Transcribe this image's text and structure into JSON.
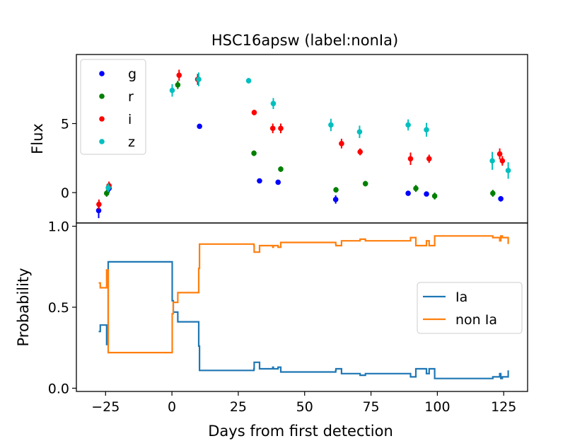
{
  "figure": {
    "title": "HSC16apsw (label:nonIa)",
    "xlabel": "Days from first detection"
  },
  "chart_data": [
    {
      "type": "scatter",
      "panel": "top",
      "title": "HSC16apsw (label:nonIa)",
      "xlabel": "",
      "ylabel": "Flux",
      "xlim": [
        -36,
        134
      ],
      "ylim": [
        -2.2,
        10.0
      ],
      "yticks": [
        0,
        5
      ],
      "legend": "top-left",
      "series": [
        {
          "name": "g",
          "color": "#0000ff",
          "points": [
            {
              "x": -27.6,
              "y": -1.3,
              "err": 0.55
            },
            {
              "x": -23.7,
              "y": 0.3,
              "err": 0.3
            },
            {
              "x": 10.4,
              "y": 4.8,
              "err": 0.15
            },
            {
              "x": 33.0,
              "y": 0.85,
              "err": 0.15
            },
            {
              "x": 40.0,
              "y": 0.75,
              "err": 0.15
            },
            {
              "x": 61.7,
              "y": -0.5,
              "err": 0.3
            },
            {
              "x": 89.0,
              "y": -0.05,
              "err": 0.15
            },
            {
              "x": 95.9,
              "y": -0.1,
              "err": 0.15
            },
            {
              "x": 123.9,
              "y": -0.45,
              "err": 0.2
            }
          ]
        },
        {
          "name": "r",
          "color": "#008000",
          "points": [
            {
              "x": -24.6,
              "y": -0.05,
              "err": 0.25
            },
            {
              "x": 2.2,
              "y": 7.8,
              "err": 0.3
            },
            {
              "x": 30.9,
              "y": 2.85,
              "err": 0.2
            },
            {
              "x": 41.0,
              "y": 1.7,
              "err": 0.2
            },
            {
              "x": 61.8,
              "y": 0.2,
              "err": 0.2
            },
            {
              "x": 72.9,
              "y": 0.65,
              "err": 0.2
            },
            {
              "x": 91.9,
              "y": 0.3,
              "err": 0.25
            },
            {
              "x": 99.0,
              "y": -0.25,
              "err": 0.25
            },
            {
              "x": 120.9,
              "y": -0.05,
              "err": 0.25
            }
          ]
        },
        {
          "name": "i",
          "color": "#ff0000",
          "points": [
            {
              "x": -27.5,
              "y": -0.85,
              "err": 0.35
            },
            {
              "x": -23.7,
              "y": 0.5,
              "err": 0.3
            },
            {
              "x": 2.7,
              "y": 8.5,
              "err": 0.4
            },
            {
              "x": 9.7,
              "y": 8.2,
              "err": 0.4
            },
            {
              "x": 31.0,
              "y": 5.8,
              "err": 0.2
            },
            {
              "x": 38.0,
              "y": 4.65,
              "err": 0.35
            },
            {
              "x": 41.0,
              "y": 4.65,
              "err": 0.35
            },
            {
              "x": 63.9,
              "y": 3.55,
              "err": 0.35
            },
            {
              "x": 70.9,
              "y": 2.95,
              "err": 0.25
            },
            {
              "x": 89.9,
              "y": 2.45,
              "err": 0.45
            },
            {
              "x": 96.9,
              "y": 2.45,
              "err": 0.3
            },
            {
              "x": 123.5,
              "y": 2.8,
              "err": 0.4
            },
            {
              "x": 124.5,
              "y": 2.3,
              "err": 0.35
            }
          ]
        },
        {
          "name": "z",
          "color": "#00bfbf",
          "points": [
            {
              "x": -24.0,
              "y": 0.35,
              "err": 0.3
            },
            {
              "x": 0.1,
              "y": 7.4,
              "err": 0.45
            },
            {
              "x": 10.1,
              "y": 8.2,
              "err": 0.5
            },
            {
              "x": 28.9,
              "y": 8.1,
              "err": 0.2
            },
            {
              "x": 38.2,
              "y": 6.45,
              "err": 0.4
            },
            {
              "x": 59.9,
              "y": 4.9,
              "err": 0.45
            },
            {
              "x": 70.7,
              "y": 4.4,
              "err": 0.45
            },
            {
              "x": 89.0,
              "y": 4.9,
              "err": 0.4
            },
            {
              "x": 95.9,
              "y": 4.55,
              "err": 0.5
            },
            {
              "x": 120.7,
              "y": 2.3,
              "err": 0.65
            },
            {
              "x": 126.7,
              "y": 1.6,
              "err": 0.6
            }
          ]
        }
      ]
    },
    {
      "type": "line",
      "panel": "bottom",
      "step": true,
      "title": "",
      "xlabel": "Days from first detection",
      "ylabel": "Probability",
      "xlim": [
        -36,
        134
      ],
      "ylim": [
        -0.02,
        1.02
      ],
      "xticks": [
        -25,
        0,
        25,
        50,
        75,
        100,
        125
      ],
      "yticks": [
        0.0,
        0.5,
        1.0
      ],
      "ytick_labels": [
        "0.0",
        "0.5",
        "1.0"
      ],
      "legend": "center-right",
      "x": [
        -27.6,
        -27.0,
        -24.6,
        -24.0,
        -23.7,
        0.1,
        0.5,
        2.2,
        2.7,
        9.7,
        10.1,
        10.4,
        28.9,
        30.9,
        31.0,
        33.0,
        38.0,
        38.2,
        40.0,
        41.0,
        59.9,
        61.7,
        61.8,
        63.9,
        70.7,
        70.9,
        72.9,
        89.0,
        89.9,
        91.9,
        95.9,
        96.9,
        99.0,
        120.7,
        120.9,
        123.5,
        123.9,
        124.5,
        126.7
      ],
      "series": [
        {
          "name": "Ia",
          "color": "#1f77b4",
          "values": [
            0.35,
            0.39,
            0.27,
            0.78,
            0.78,
            0.54,
            0.47,
            0.41,
            0.41,
            0.41,
            0.26,
            0.11,
            0.11,
            0.12,
            0.16,
            0.12,
            0.13,
            0.12,
            0.13,
            0.1,
            0.1,
            0.11,
            0.12,
            0.09,
            0.09,
            0.08,
            0.09,
            0.09,
            0.07,
            0.12,
            0.09,
            0.12,
            0.06,
            0.06,
            0.07,
            0.09,
            0.06,
            0.07,
            0.11
          ]
        },
        {
          "name": "non Ia",
          "color": "#ff7f0e",
          "values": [
            0.65,
            0.62,
            0.73,
            0.22,
            0.22,
            0.46,
            0.53,
            0.59,
            0.59,
            0.59,
            0.74,
            0.89,
            0.89,
            0.88,
            0.84,
            0.88,
            0.87,
            0.88,
            0.87,
            0.9,
            0.9,
            0.89,
            0.88,
            0.91,
            0.91,
            0.92,
            0.91,
            0.91,
            0.93,
            0.88,
            0.91,
            0.88,
            0.94,
            0.94,
            0.93,
            0.91,
            0.94,
            0.93,
            0.89
          ]
        }
      ]
    }
  ]
}
